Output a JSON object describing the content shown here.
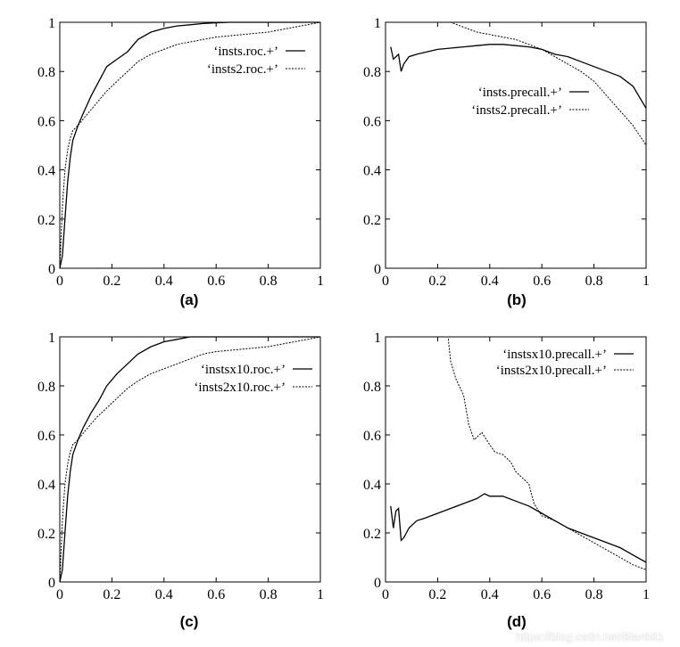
{
  "colors": {
    "line": "#000000",
    "background": "#ffffff",
    "page": "#f5f5f5"
  },
  "watermark": "https://blog.csdn.net/Blankit1",
  "chart_data": [
    {
      "id": "a",
      "type": "line",
      "caption": "(a)",
      "xlim": [
        0,
        1
      ],
      "ylim": [
        0,
        1
      ],
      "xticks": [
        "0",
        "0.2",
        "0.4",
        "0.6",
        "0.8",
        "1"
      ],
      "yticks": [
        "0",
        "0.2",
        "0.4",
        "0.6",
        "0.8",
        "1"
      ],
      "legend_position": "top-right",
      "series": [
        {
          "name": "‘insts.roc.+’",
          "style": "solid",
          "x": [
            0,
            0.01,
            0.02,
            0.03,
            0.04,
            0.05,
            0.07,
            0.09,
            0.12,
            0.15,
            0.18,
            0.22,
            0.26,
            0.3,
            0.35,
            0.4,
            0.45,
            0.5,
            0.55,
            0.6,
            0.65,
            0.7,
            0.8,
            0.9,
            1.0
          ],
          "y": [
            0,
            0.05,
            0.2,
            0.35,
            0.45,
            0.52,
            0.58,
            0.63,
            0.7,
            0.76,
            0.82,
            0.85,
            0.88,
            0.93,
            0.96,
            0.975,
            0.985,
            0.99,
            0.995,
            0.998,
            1.0,
            1.0,
            1.0,
            1.0,
            1.0
          ]
        },
        {
          "name": "‘insts2.roc.+’",
          "style": "dashed",
          "x": [
            0,
            0.01,
            0.02,
            0.03,
            0.04,
            0.05,
            0.07,
            0.1,
            0.14,
            0.18,
            0.22,
            0.26,
            0.3,
            0.35,
            0.4,
            0.45,
            0.5,
            0.55,
            0.6,
            0.7,
            0.8,
            0.9,
            0.95,
            1.0
          ],
          "y": [
            0,
            0.25,
            0.4,
            0.48,
            0.53,
            0.56,
            0.58,
            0.62,
            0.67,
            0.72,
            0.76,
            0.8,
            0.84,
            0.87,
            0.89,
            0.91,
            0.92,
            0.93,
            0.94,
            0.95,
            0.96,
            0.98,
            0.99,
            1.0
          ]
        }
      ]
    },
    {
      "id": "b",
      "type": "line",
      "caption": "(b)",
      "xlim": [
        0,
        1
      ],
      "ylim": [
        0,
        1
      ],
      "xticks": [
        "0",
        "0.2",
        "0.4",
        "0.6",
        "0.8",
        "1"
      ],
      "yticks": [
        "0",
        "0.2",
        "0.4",
        "0.6",
        "0.8",
        "1"
      ],
      "legend_position": "middle-right",
      "series": [
        {
          "name": "‘insts.precall.+’",
          "style": "solid",
          "x": [
            0.02,
            0.03,
            0.04,
            0.05,
            0.06,
            0.07,
            0.09,
            0.12,
            0.16,
            0.2,
            0.25,
            0.3,
            0.35,
            0.4,
            0.45,
            0.5,
            0.55,
            0.6,
            0.65,
            0.7,
            0.75,
            0.8,
            0.85,
            0.9,
            0.95,
            1.0
          ],
          "y": [
            0.9,
            0.85,
            0.86,
            0.87,
            0.8,
            0.83,
            0.86,
            0.87,
            0.88,
            0.89,
            0.895,
            0.9,
            0.905,
            0.91,
            0.91,
            0.905,
            0.9,
            0.89,
            0.87,
            0.86,
            0.84,
            0.82,
            0.8,
            0.78,
            0.74,
            0.65
          ]
        },
        {
          "name": "‘insts2.precall.+’",
          "style": "dashed",
          "x": [
            0.02,
            0.1,
            0.2,
            0.25,
            0.3,
            0.35,
            0.4,
            0.45,
            0.5,
            0.55,
            0.6,
            0.65,
            0.7,
            0.75,
            0.8,
            0.85,
            0.9,
            0.95,
            1.0
          ],
          "y": [
            1.0,
            1.0,
            1.0,
            1.0,
            0.98,
            0.96,
            0.95,
            0.94,
            0.93,
            0.91,
            0.89,
            0.86,
            0.83,
            0.8,
            0.76,
            0.7,
            0.64,
            0.58,
            0.5
          ]
        }
      ]
    },
    {
      "id": "c",
      "type": "line",
      "caption": "(c)",
      "xlim": [
        0,
        1
      ],
      "ylim": [
        0,
        1
      ],
      "xticks": [
        "0",
        "0.2",
        "0.4",
        "0.6",
        "0.8",
        "1"
      ],
      "yticks": [
        "0",
        "0.2",
        "0.4",
        "0.6",
        "0.8",
        "1"
      ],
      "legend_position": "top-right",
      "series": [
        {
          "name": "‘instsx10.roc.+’",
          "style": "solid",
          "x": [
            0,
            0.01,
            0.02,
            0.03,
            0.04,
            0.05,
            0.07,
            0.09,
            0.12,
            0.15,
            0.18,
            0.22,
            0.26,
            0.3,
            0.35,
            0.4,
            0.45,
            0.5,
            0.55,
            0.6,
            0.7,
            0.8,
            0.9,
            1.0
          ],
          "y": [
            0,
            0.05,
            0.2,
            0.35,
            0.45,
            0.52,
            0.58,
            0.63,
            0.69,
            0.74,
            0.8,
            0.85,
            0.89,
            0.93,
            0.96,
            0.98,
            0.99,
            1.0,
            1.0,
            1.0,
            1.0,
            1.0,
            1.0,
            1.0
          ]
        },
        {
          "name": "‘insts2x10.roc.+’",
          "style": "dashed",
          "x": [
            0,
            0.01,
            0.02,
            0.03,
            0.04,
            0.05,
            0.07,
            0.1,
            0.14,
            0.18,
            0.22,
            0.26,
            0.3,
            0.35,
            0.4,
            0.45,
            0.5,
            0.55,
            0.6,
            0.7,
            0.8,
            0.9,
            0.95,
            1.0
          ],
          "y": [
            0,
            0.25,
            0.4,
            0.48,
            0.53,
            0.56,
            0.58,
            0.62,
            0.67,
            0.71,
            0.75,
            0.79,
            0.82,
            0.85,
            0.87,
            0.89,
            0.91,
            0.93,
            0.94,
            0.95,
            0.96,
            0.98,
            0.99,
            1.0
          ]
        }
      ]
    },
    {
      "id": "d",
      "type": "line",
      "caption": "(d)",
      "xlim": [
        0,
        1
      ],
      "ylim": [
        0,
        1
      ],
      "xticks": [
        "0",
        "0.2",
        "0.4",
        "0.6",
        "0.8",
        "1"
      ],
      "yticks": [
        "0",
        "0.2",
        "0.4",
        "0.6",
        "0.8",
        "1"
      ],
      "legend_position": "top-right",
      "series": [
        {
          "name": "‘instsx10.precall.+’",
          "style": "solid",
          "x": [
            0.02,
            0.03,
            0.04,
            0.05,
            0.06,
            0.07,
            0.09,
            0.12,
            0.15,
            0.2,
            0.25,
            0.3,
            0.35,
            0.38,
            0.4,
            0.45,
            0.5,
            0.55,
            0.6,
            0.65,
            0.7,
            0.75,
            0.8,
            0.85,
            0.9,
            0.95,
            1.0
          ],
          "y": [
            0.31,
            0.22,
            0.29,
            0.3,
            0.17,
            0.18,
            0.22,
            0.25,
            0.26,
            0.28,
            0.3,
            0.32,
            0.34,
            0.36,
            0.35,
            0.35,
            0.33,
            0.31,
            0.28,
            0.25,
            0.22,
            0.2,
            0.18,
            0.16,
            0.14,
            0.11,
            0.08
          ]
        },
        {
          "name": "‘insts2x10.precall.+’",
          "style": "dashed",
          "x": [
            0.02,
            0.1,
            0.2,
            0.24,
            0.25,
            0.27,
            0.3,
            0.32,
            0.34,
            0.37,
            0.4,
            0.42,
            0.45,
            0.48,
            0.5,
            0.55,
            0.57,
            0.6,
            0.65,
            0.7,
            0.75,
            0.8,
            0.85,
            0.9,
            0.95,
            1.0
          ],
          "y": [
            1.0,
            1.0,
            1.0,
            1.0,
            0.9,
            0.83,
            0.76,
            0.64,
            0.58,
            0.61,
            0.56,
            0.53,
            0.52,
            0.49,
            0.45,
            0.4,
            0.32,
            0.27,
            0.25,
            0.22,
            0.19,
            0.16,
            0.13,
            0.1,
            0.07,
            0.05
          ]
        }
      ]
    }
  ]
}
